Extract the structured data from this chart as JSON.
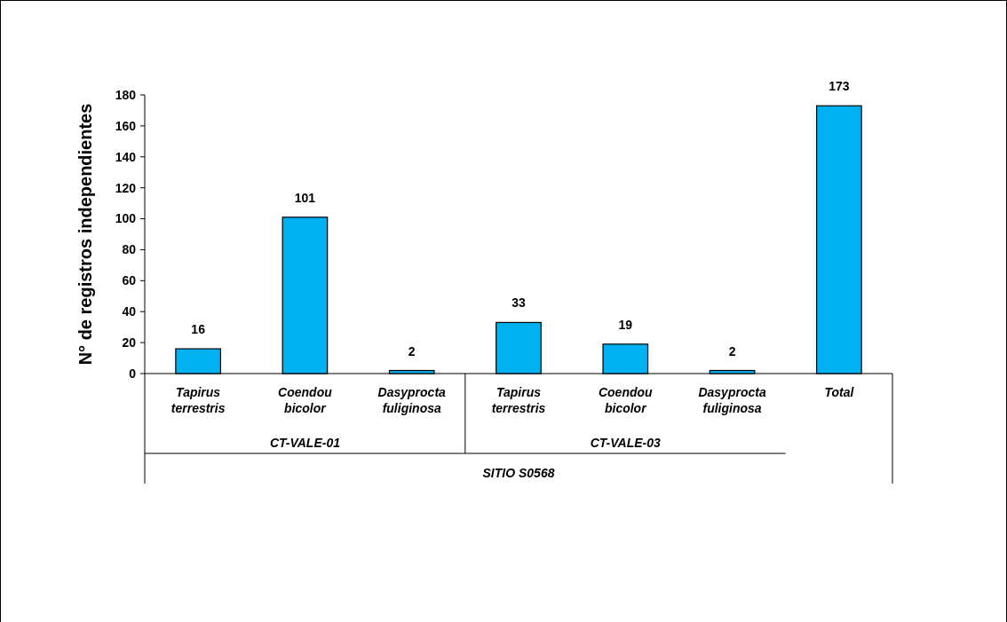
{
  "chart_data": {
    "type": "bar",
    "ylabel": "N° de registros independientes",
    "categories": [
      "Tapirus terrestris",
      "Coendou bicolor",
      "Dasyprocta fuliginosa",
      "Tapirus terrestris",
      "Coendou bicolor",
      "Dasyprocta fuliginosa",
      "Total"
    ],
    "values": [
      16,
      101,
      2,
      33,
      19,
      2,
      173
    ],
    "color": "#00b0f0",
    "ylim": [
      0,
      180
    ],
    "yticks": [
      0,
      20,
      40,
      60,
      80,
      100,
      120,
      140,
      160,
      180
    ],
    "grid": false,
    "data_labels": true,
    "annotations": [
      "CT-VALE-01",
      "CT-VALE-03",
      "SITIO S0568"
    ]
  }
}
